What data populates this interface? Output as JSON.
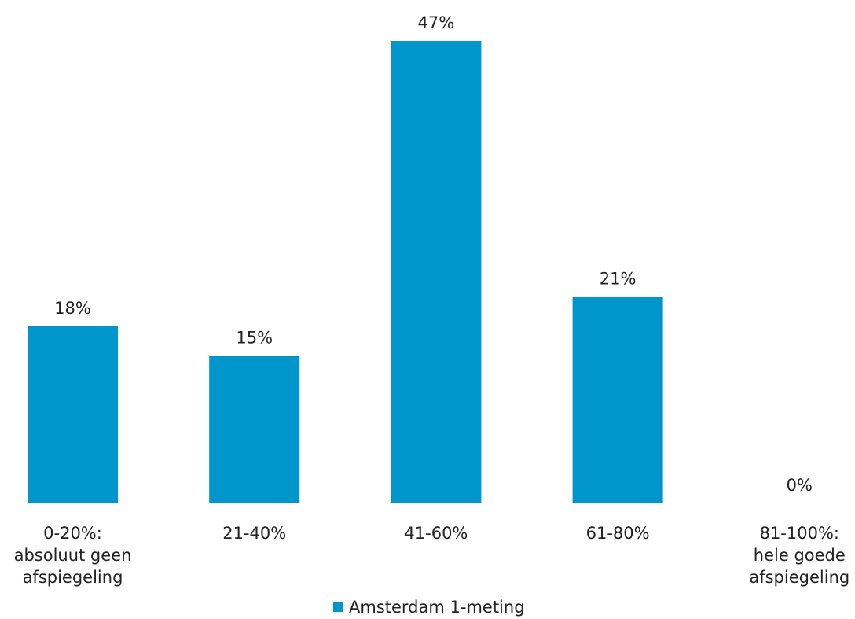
{
  "chart_data": {
    "type": "bar",
    "categories": [
      [
        "0-20%:",
        "absoluut geen",
        "afspiegeling"
      ],
      [
        "21-40%"
      ],
      [
        "41-60%"
      ],
      [
        "61-80%"
      ],
      [
        "81-100%:",
        "hele goede",
        "afspiegeling"
      ]
    ],
    "series": [
      {
        "name": "Amsterdam 1-meting",
        "values": [
          18,
          15,
          47,
          21,
          0
        ],
        "value_labels": [
          "18%",
          "15%",
          "47%",
          "21%",
          "0%"
        ],
        "color": "#0096cc"
      }
    ],
    "ylim": [
      0,
      47
    ],
    "grid": false,
    "legend": "bottom-center"
  }
}
